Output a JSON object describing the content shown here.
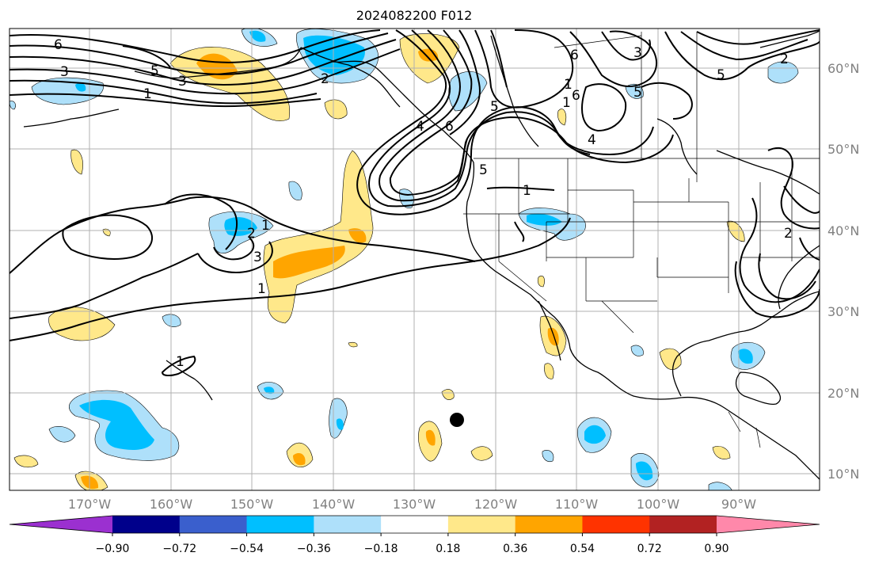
{
  "title": "2024082200 F012",
  "longitude_labels": [
    "170°W",
    "160°W",
    "150°W",
    "140°W",
    "130°W",
    "120°W",
    "110°W",
    "100°W",
    "90°W"
  ],
  "latitude_labels": [
    "60°N",
    "50°N",
    "40°N",
    "30°N",
    "20°N",
    "10°N"
  ],
  "colorbar": {
    "tick_labels": [
      "−0.90",
      "−0.72",
      "−0.54",
      "−0.36",
      "−0.18",
      "0.18",
      "0.36",
      "0.54",
      "0.72",
      "0.90"
    ],
    "colors": [
      "#9b30d0",
      "#00008b",
      "#3a5fcd",
      "#00bfff",
      "#aee0fa",
      "#ffffff",
      "#ffe88a",
      "#ffa500",
      "#ff3300",
      "#b22222",
      "#ff88aa"
    ]
  },
  "contour_labels": {
    "c1": "6",
    "c2": "3",
    "c3": "1",
    "c4": "5",
    "c5": "3",
    "c6": "2",
    "c7": "5",
    "c8": "6",
    "c9": "6",
    "c10": "3",
    "c11": "5",
    "c12": "1",
    "c13": "6",
    "c14": "4",
    "c15": "5",
    "c16": "1",
    "c17": "4",
    "c18": "1",
    "c19": "2",
    "c20": "3",
    "c21": "1",
    "c22": "1",
    "c23": "1",
    "c24": "2",
    "c25": "5",
    "c26": "2"
  },
  "marker": "storm-center-dot"
}
